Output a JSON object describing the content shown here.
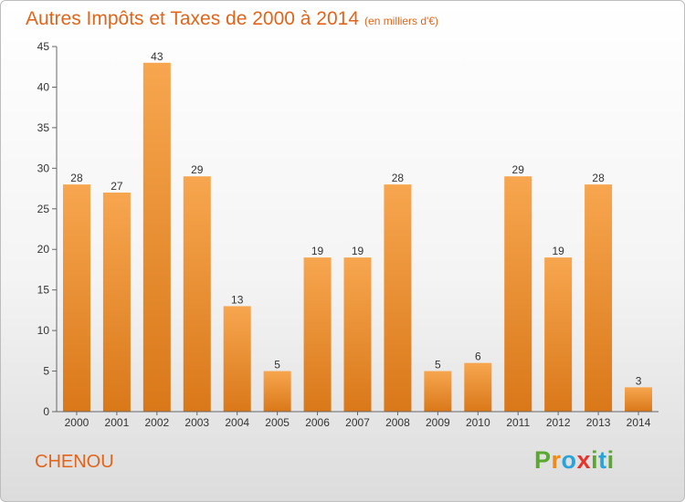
{
  "header": {
    "title": "Autres Impôts et Taxes de 2000 à 2014",
    "subtitle": "(en milliers d'€)"
  },
  "location": "CHENOU",
  "brand": {
    "logo_text": "Proxiti"
  },
  "colors": {
    "accent": "#e2641a",
    "bar_top": "#f7a64f",
    "bar_bottom": "#d97819"
  },
  "chart_data": {
    "type": "bar",
    "title": "Autres Impôts et Taxes de 2000 à 2014",
    "subtitle": "(en milliers d'€)",
    "categories": [
      "2000",
      "2001",
      "2002",
      "2003",
      "2004",
      "2005",
      "2006",
      "2007",
      "2008",
      "2009",
      "2010",
      "2011",
      "2012",
      "2013",
      "2014"
    ],
    "values": [
      28,
      27,
      43,
      29,
      13,
      5,
      19,
      19,
      28,
      5,
      6,
      29,
      19,
      28,
      3
    ],
    "ylim": [
      0,
      45
    ],
    "yticks": [
      0,
      5,
      10,
      15,
      20,
      25,
      30,
      35,
      40,
      45
    ],
    "grid": false,
    "data_labels": true
  }
}
